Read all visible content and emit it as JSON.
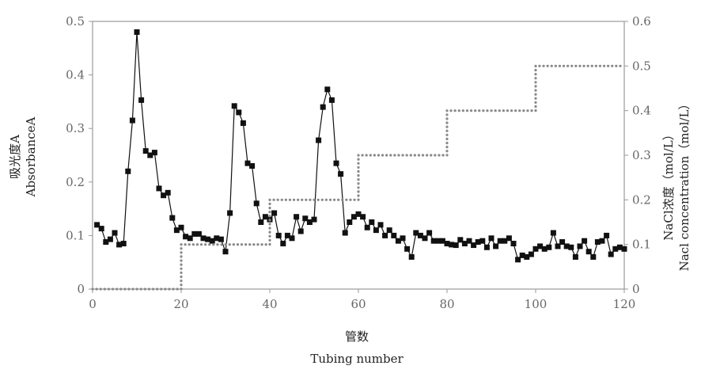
{
  "chart_data": {
    "type": "line",
    "title": "",
    "xlabel_cn": "管数",
    "xlabel_en": "Tubing number",
    "ylabel_left_cn": "吸光度A",
    "ylabel_left_en": "AbsorbanceA",
    "ylabel_right_cn": "NaCl浓度（mol/L）",
    "ylabel_right_en": "Nacl concentration（mol/L）",
    "xlim": [
      0,
      120
    ],
    "ylim_left": [
      0,
      0.5
    ],
    "ylim_right": [
      0,
      0.6
    ],
    "x_ticks": [
      "0",
      "20",
      "40",
      "60",
      "80",
      "100",
      "120"
    ],
    "y_left_ticks": [
      "0",
      "0.1",
      "0.2",
      "0.3",
      "0.4",
      "0.5"
    ],
    "y_right_ticks": [
      "0",
      "0.1",
      "0.2",
      "0.3",
      "0.4",
      "0.5",
      "0.6"
    ],
    "grid": false,
    "series": [
      {
        "axis": "left",
        "style": "line-with-square-markers",
        "color": "#111111",
        "x": [
          1,
          2,
          3,
          4,
          5,
          6,
          7,
          8,
          9,
          10,
          11,
          12,
          13,
          14,
          15,
          16,
          17,
          18,
          19,
          20,
          21,
          22,
          23,
          24,
          25,
          26,
          27,
          28,
          29,
          30,
          31,
          32,
          33,
          34,
          35,
          36,
          37,
          38,
          39,
          40,
          41,
          42,
          43,
          44,
          45,
          46,
          47,
          48,
          49,
          50,
          51,
          52,
          53,
          54,
          55,
          56,
          57,
          58,
          59,
          60,
          61,
          62,
          63,
          64,
          65,
          66,
          67,
          68,
          69,
          70,
          71,
          72,
          73,
          74,
          75,
          76,
          77,
          78,
          79,
          80,
          81,
          82,
          83,
          84,
          85,
          86,
          87,
          88,
          89,
          90,
          91,
          92,
          93,
          94,
          95,
          96,
          97,
          98,
          99,
          100,
          101,
          102,
          103,
          104,
          105,
          106,
          107,
          108,
          109,
          110,
          111,
          112,
          113,
          114,
          115,
          116,
          117,
          118,
          119,
          120
        ],
        "y": [
          0.12,
          0.113,
          0.088,
          0.093,
          0.105,
          0.083,
          0.085,
          0.22,
          0.315,
          0.48,
          0.353,
          0.258,
          0.25,
          0.255,
          0.188,
          0.175,
          0.18,
          0.133,
          0.11,
          0.115,
          0.098,
          0.095,
          0.103,
          0.103,
          0.095,
          0.093,
          0.09,
          0.095,
          0.093,
          0.07,
          0.142,
          0.342,
          0.33,
          0.31,
          0.235,
          0.23,
          0.16,
          0.125,
          0.135,
          0.13,
          0.142,
          0.1,
          0.085,
          0.1,
          0.095,
          0.135,
          0.108,
          0.132,
          0.125,
          0.13,
          0.278,
          0.34,
          0.373,
          0.353,
          0.235,
          0.215,
          0.105,
          0.125,
          0.135,
          0.14,
          0.135,
          0.115,
          0.125,
          0.11,
          0.12,
          0.1,
          0.11,
          0.1,
          0.09,
          0.095,
          0.075,
          0.06,
          0.105,
          0.1,
          0.095,
          0.105,
          0.09,
          0.09,
          0.09,
          0.085,
          0.083,
          0.082,
          0.092,
          0.085,
          0.09,
          0.082,
          0.088,
          0.09,
          0.078,
          0.095,
          0.08,
          0.09,
          0.09,
          0.095,
          0.085,
          0.055,
          0.063,
          0.06,
          0.065,
          0.075,
          0.08,
          0.075,
          0.078,
          0.105,
          0.08,
          0.088,
          0.08,
          0.078,
          0.06,
          0.08,
          0.09,
          0.07,
          0.06,
          0.088,
          0.09,
          0.1,
          0.065,
          0.075,
          0.078,
          0.075
        ]
      },
      {
        "axis": "right",
        "style": "dotted-step",
        "color": "#8a8a8a",
        "x": [
          0,
          20,
          20,
          40,
          40,
          60,
          60,
          80,
          80,
          100,
          100,
          120
        ],
        "y": [
          0,
          0,
          0.1,
          0.1,
          0.2,
          0.2,
          0.3,
          0.3,
          0.4,
          0.4,
          0.5,
          0.5
        ]
      }
    ]
  }
}
